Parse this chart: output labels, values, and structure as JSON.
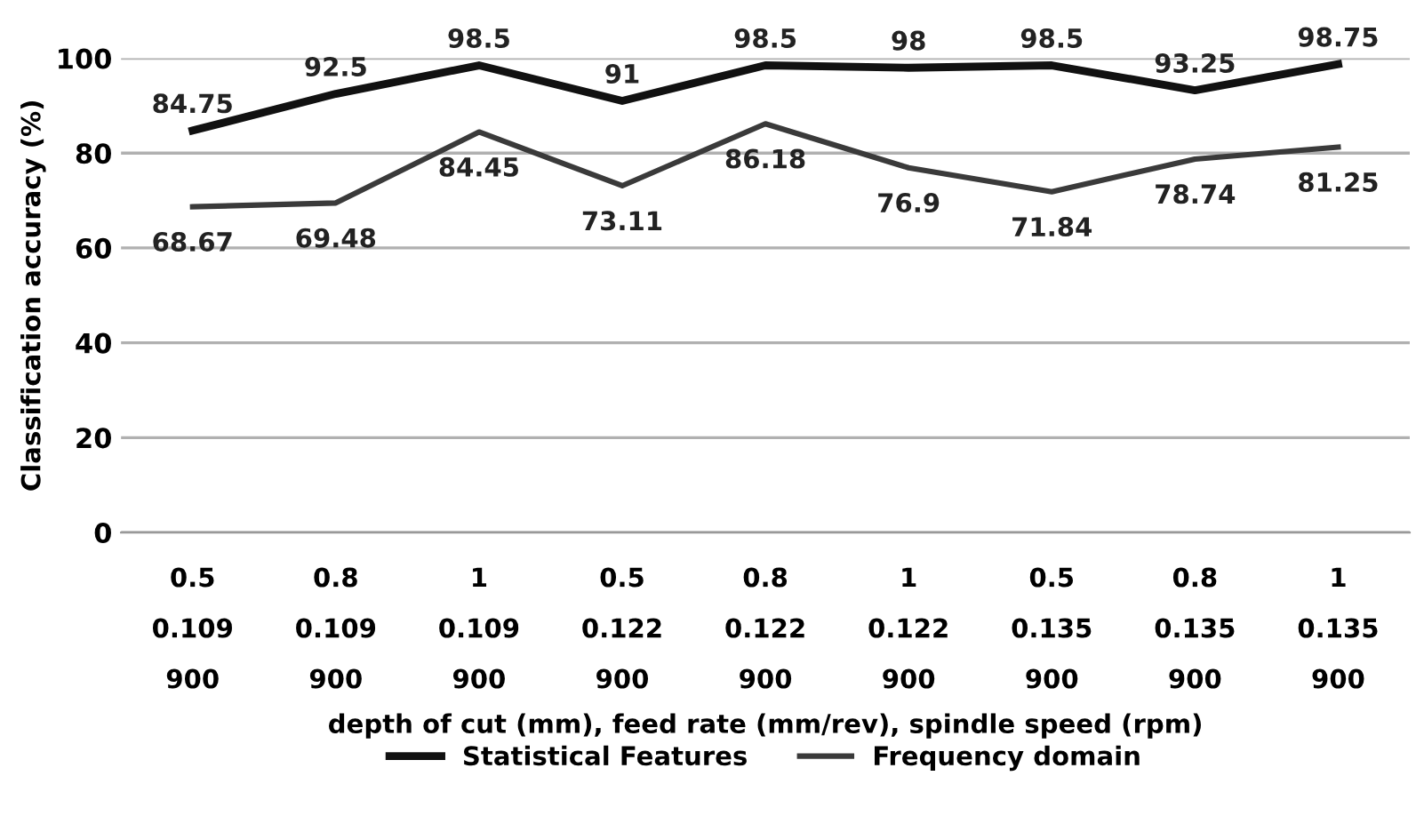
{
  "chart_data": {
    "type": "line",
    "ylabel": "Classification accuracy (%)",
    "xlabel": "depth of cut (mm), feed rate (mm/rev), spindle speed (rpm)",
    "categories": [
      "0.5\n0.109\n900",
      "0.8\n0.109\n900",
      "1\n0.109\n900",
      "0.5\n0.122\n900",
      "0.8\n0.122\n900",
      "1\n0.122\n900",
      "0.5\n0.135\n900",
      "0.8\n0.135\n900",
      "1\n0.135\n900"
    ],
    "series": [
      {
        "name": "Statistical Features",
        "color": "#111111",
        "values": [
          84.75,
          92.5,
          98.5,
          91,
          98.5,
          98,
          98.5,
          93.25,
          98.75
        ]
      },
      {
        "name": "Frequency domain",
        "color": "#3a3a3a",
        "values": [
          68.67,
          69.48,
          84.45,
          73.11,
          86.18,
          76.9,
          71.84,
          78.74,
          81.25
        ]
      }
    ],
    "ylim": [
      0,
      100
    ],
    "yticks": [
      0,
      20,
      40,
      60,
      80,
      100
    ],
    "grid": "y",
    "legend": "bottom",
    "data_labels": true,
    "marker": "none",
    "line_style": "solid"
  }
}
